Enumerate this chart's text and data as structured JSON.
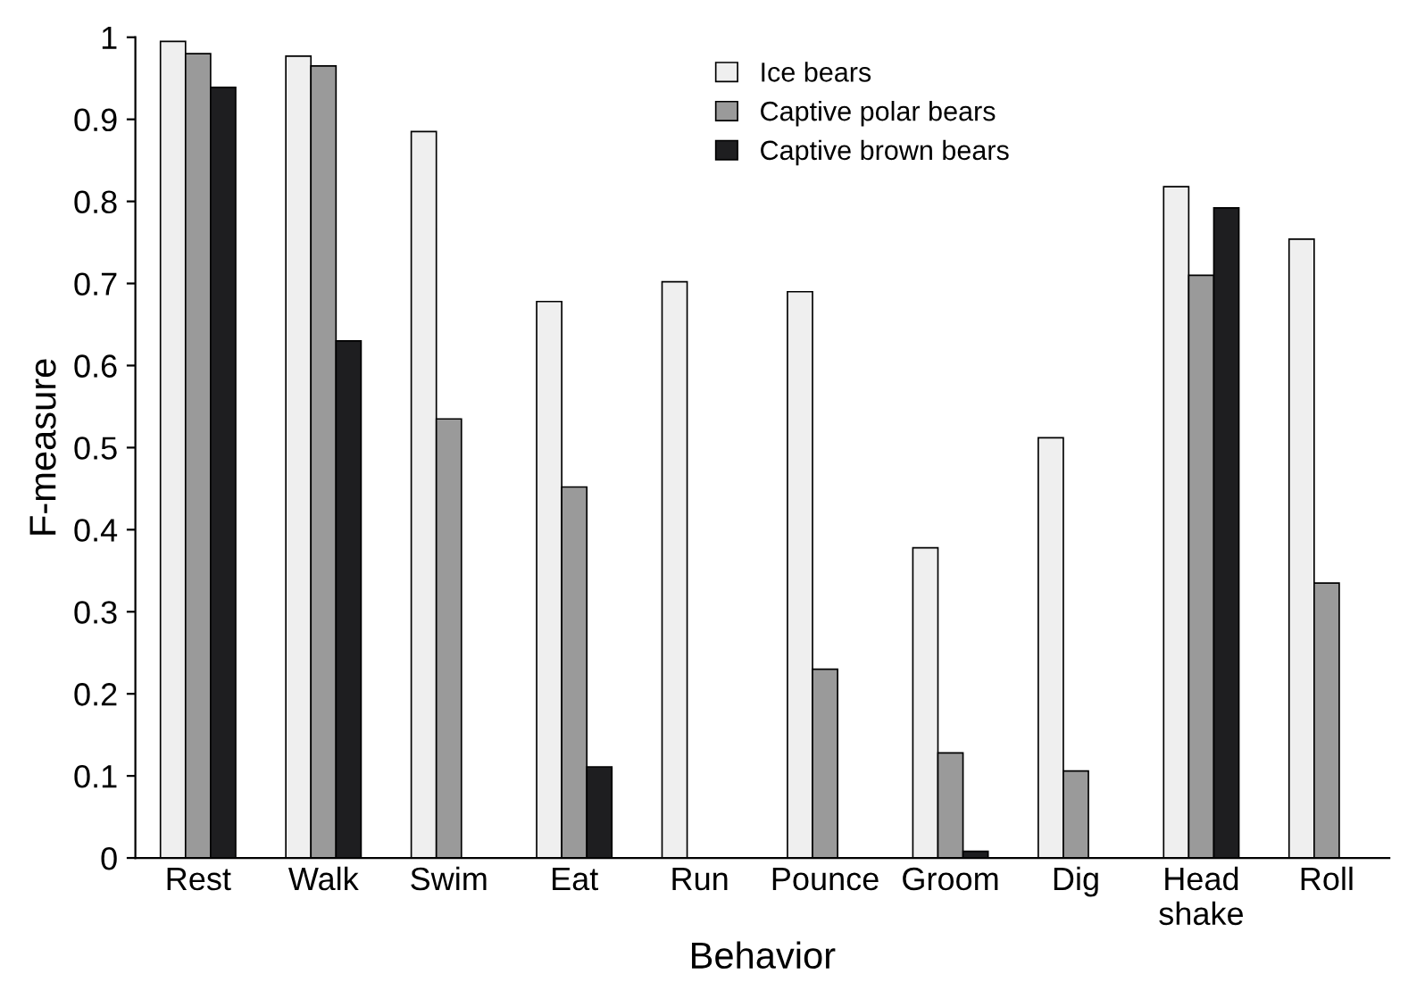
{
  "chart_data": {
    "type": "bar",
    "xlabel": "Behavior",
    "ylabel": "F-measure",
    "categories": [
      "Rest",
      "Walk",
      "Swim",
      "Eat",
      "Run",
      "Pounce",
      "Groom",
      "Dig",
      "Head\nshake",
      "Roll"
    ],
    "series": [
      {
        "name": "Ice bears",
        "color": "#efefef",
        "values": [
          0.995,
          0.977,
          0.885,
          0.678,
          0.702,
          0.69,
          0.378,
          0.512,
          0.818,
          0.754
        ]
      },
      {
        "name": "Captive polar bears",
        "color": "#9a9a9a",
        "values": [
          0.98,
          0.965,
          0.535,
          0.452,
          null,
          0.23,
          0.128,
          0.106,
          0.71,
          0.335
        ]
      },
      {
        "name": "Captive brown bears",
        "color": "#1e1e20",
        "values": [
          0.939,
          0.63,
          null,
          0.111,
          null,
          null,
          0.008,
          null,
          0.792,
          null
        ]
      }
    ],
    "ylim": [
      0,
      1
    ],
    "yticks": [
      0,
      0.1,
      0.2,
      0.3,
      0.4,
      0.5,
      0.6,
      0.7,
      0.8,
      0.9,
      1
    ],
    "grid": false,
    "legend": "top"
  }
}
